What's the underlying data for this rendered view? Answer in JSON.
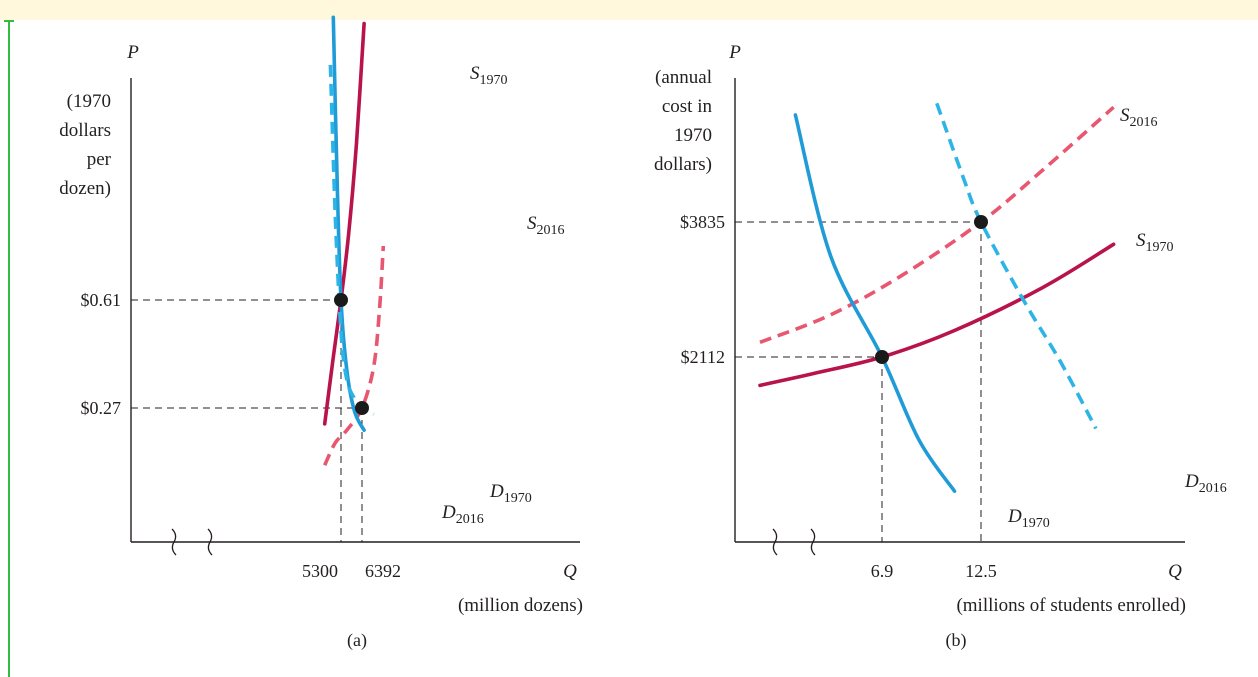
{
  "theme": {
    "demand_color": "#1f9bd7",
    "demand_new_color": "#2cb4e6",
    "supply_color": "#b8134a",
    "supply_new_color": "#e8566f",
    "text_color": "#231f20",
    "band_color": "#fff8dd",
    "rule_color": "#33bb44"
  },
  "chart_data": [
    {
      "type": "line",
      "panel_label": "(a)",
      "y_axis_symbol": "P",
      "y_axis_label_lines": [
        "(1970",
        "dollars",
        "per",
        "dozen)"
      ],
      "x_axis_symbol": "Q",
      "x_axis_label": "(million dozens)",
      "x_ticks": [
        {
          "value": 5300,
          "label": "5300"
        },
        {
          "value": 6392,
          "label": "6392"
        }
      ],
      "y_ticks": [
        {
          "value": 0.61,
          "label": "$0.61"
        },
        {
          "value": 0.27,
          "label": "$0.27"
        }
      ],
      "series": [
        {
          "id": "S1970",
          "base": "S",
          "sub": "1970",
          "style": "solid",
          "role": "supply",
          "x": [
            4450,
            4900,
            5300,
            5700,
            6100,
            6500
          ],
          "y": [
            0.22,
            0.43,
            0.61,
            0.82,
            1.1,
            1.48
          ]
        },
        {
          "id": "S2016",
          "base": "S",
          "sub": "2016",
          "style": "dashed",
          "role": "supply",
          "x": [
            4450,
            5000,
            5600,
            6392,
            7000,
            7300,
            7500
          ],
          "y": [
            0.09,
            0.16,
            0.2,
            0.27,
            0.4,
            0.58,
            0.78
          ]
        },
        {
          "id": "D1970",
          "base": "D",
          "sub": "1970",
          "style": "solid",
          "role": "demand",
          "x": [
            4900,
            5100,
            5300,
            5600,
            6000,
            6500
          ],
          "y": [
            1.5,
            0.98,
            0.61,
            0.39,
            0.26,
            0.2
          ]
        },
        {
          "id": "D2016",
          "base": "D",
          "sub": "2016",
          "style": "dashed",
          "role": "demand",
          "x": [
            4750,
            5000,
            5300,
            5600,
            6000,
            6392,
            7000
          ],
          "y": [
            1.35,
            0.88,
            0.51,
            0.36,
            0.3,
            0.27,
            0.25
          ]
        }
      ],
      "equilibria": [
        {
          "x": 5300,
          "y": 0.61
        },
        {
          "x": 6392,
          "y": 0.27
        }
      ]
    },
    {
      "type": "line",
      "panel_label": "(b)",
      "y_axis_symbol": "P",
      "y_axis_label_lines": [
        "(annual",
        "cost in",
        "1970",
        "dollars)"
      ],
      "x_axis_symbol": "Q",
      "x_axis_label": "(millions of students enrolled)",
      "x_ticks": [
        {
          "value": 6.9,
          "label": "6.9"
        },
        {
          "value": 12.5,
          "label": "12.5"
        }
      ],
      "y_ticks": [
        {
          "value": 3835,
          "label": "$3835"
        },
        {
          "value": 2112,
          "label": "$2112"
        }
      ],
      "series": [
        {
          "id": "S2016",
          "base": "S",
          "sub": "2016",
          "style": "dashed",
          "role": "supply",
          "x": [
            0,
            4,
            8,
            12.5,
            16,
            20
          ],
          "y": [
            2300,
            2650,
            3150,
            3835,
            4500,
            5300
          ]
        },
        {
          "id": "S1970",
          "base": "S",
          "sub": "1970",
          "style": "solid",
          "role": "supply",
          "x": [
            0,
            3,
            6.9,
            11,
            16,
            20
          ],
          "y": [
            1750,
            1900,
            2112,
            2450,
            3000,
            3550
          ]
        },
        {
          "id": "D1970",
          "base": "D",
          "sub": "1970",
          "style": "solid",
          "role": "demand",
          "x": [
            2,
            4,
            6.9,
            9,
            11
          ],
          "y": [
            5200,
            3400,
            2112,
            1050,
            400
          ]
        },
        {
          "id": "D2016",
          "base": "D",
          "sub": "2016",
          "style": "dashed",
          "role": "demand",
          "x": [
            10,
            11.5,
            12.5,
            15,
            17,
            19
          ],
          "y": [
            5350,
            4400,
            3835,
            2800,
            2050,
            1200
          ]
        }
      ],
      "equilibria": [
        {
          "x": 12.5,
          "y": 3835
        },
        {
          "x": 6.9,
          "y": 2112
        }
      ]
    }
  ]
}
